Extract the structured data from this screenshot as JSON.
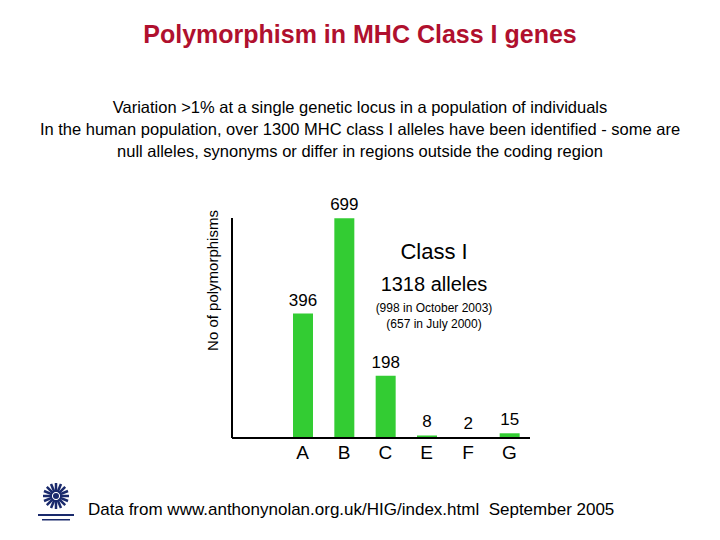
{
  "chart_data": {
    "type": "bar",
    "title": "Polymorphism in MHC Class I genes",
    "subtitle": [
      "Variation >1% at a single genetic locus in a population of individuals",
      "In the human population, over 1300 MHC class I alleles have been identified - some are null alleles, synonyms or differ in regions outside the coding region"
    ],
    "y_label": "No of polymorphisms",
    "categories": [
      "A",
      "B",
      "C",
      "E",
      "F",
      "G"
    ],
    "values": [
      396,
      699,
      198,
      8,
      2,
      15
    ],
    "color": "#33cc33",
    "ylim": [
      0,
      700
    ],
    "tick_labels": "x",
    "grid": false,
    "data_labels": true,
    "annotations": [
      "Class I",
      "1318 alleles",
      "(998 in October 2003)",
      "(657 in July 2000)"
    ],
    "source": "Data from www.anthonynolan.org.uk/HIG/index.html  September 2005"
  }
}
